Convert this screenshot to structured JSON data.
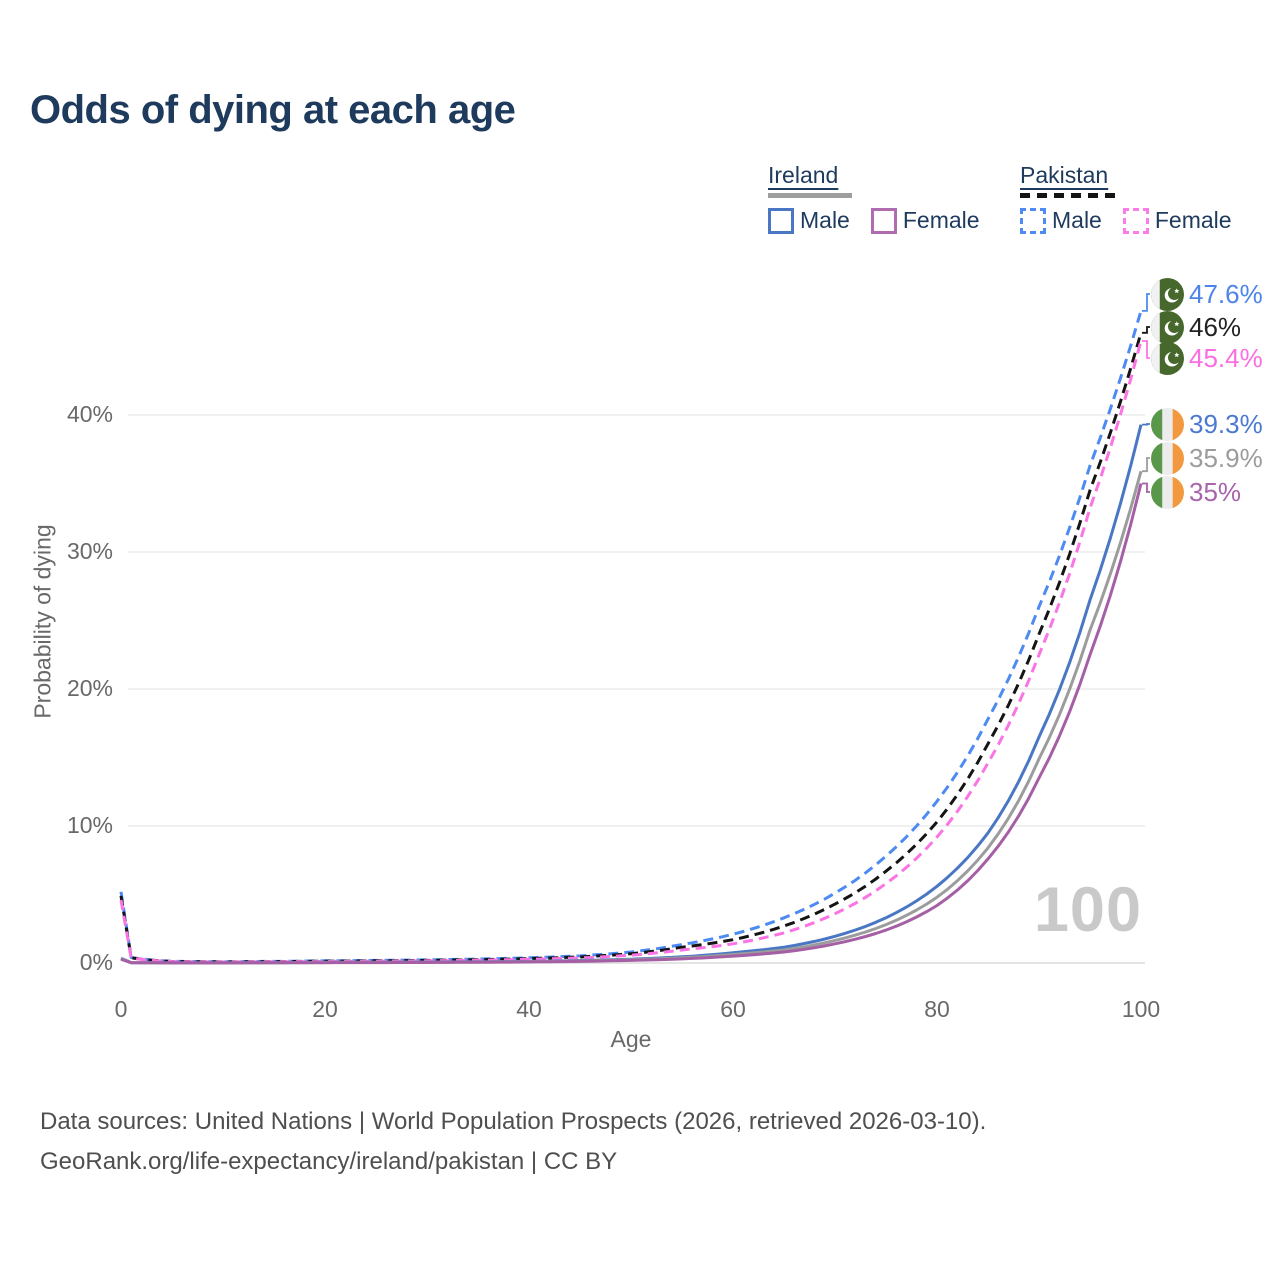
{
  "title": "Odds of dying at each age",
  "watermark": "100",
  "footer": {
    "line1": "Data sources: United Nations | World Population Prospects (2026, retrieved 2026-03-10).",
    "line2": "GeoRank.org/life-expectancy/ireland/pakistan | CC BY"
  },
  "legend": {
    "groups": [
      {
        "id": "ireland",
        "label": "Ireland",
        "line_style": "solid",
        "line_color": "#9e9e9e",
        "items": [
          {
            "id": "ie_male",
            "label": "Male",
            "color": "#4a77c4",
            "style": "solid"
          },
          {
            "id": "ie_female",
            "label": "Female",
            "color": "#b06cb0",
            "style": "solid"
          }
        ]
      },
      {
        "id": "pakistan",
        "label": "Pakistan",
        "line_style": "dashed",
        "line_color": "#141414",
        "items": [
          {
            "id": "pk_male",
            "label": "Male",
            "color": "#4d8af2",
            "style": "dashed"
          },
          {
            "id": "pk_female",
            "label": "Female",
            "color": "#fb7ce8",
            "style": "dashed"
          }
        ]
      }
    ]
  },
  "chart_data": {
    "type": "line",
    "title": "Odds of dying at each age",
    "xlabel": "Age",
    "ylabel": "Probability of dying",
    "xlim": [
      0,
      100
    ],
    "ylim": [
      0,
      48
    ],
    "x_ticks": [
      0,
      20,
      40,
      60,
      80,
      100
    ],
    "y_ticks": [
      "0%",
      "10%",
      "20%",
      "30%",
      "40%"
    ],
    "grid": "horizontal",
    "legend_position": "top-right",
    "x": [
      0,
      1,
      5,
      10,
      15,
      20,
      25,
      30,
      35,
      40,
      45,
      50,
      55,
      60,
      65,
      70,
      75,
      80,
      85,
      90,
      95,
      100
    ],
    "series": [
      {
        "id": "pk_male",
        "name": "Pakistan Male",
        "flag": "pk",
        "color": "#4d8af2",
        "label_color": "#4d84ea",
        "dash": true,
        "end_label": "47.6%",
        "values": [
          5.2,
          0.4,
          0.12,
          0.09,
          0.12,
          0.16,
          0.19,
          0.23,
          0.29,
          0.38,
          0.52,
          0.8,
          1.35,
          2.1,
          3.3,
          5.1,
          7.8,
          11.8,
          17.8,
          26.0,
          36.3,
          47.6
        ]
      },
      {
        "id": "pk_all",
        "name": "Pakistan Both sexes",
        "flag": "pk",
        "color": "#141414",
        "label_color": "#222222",
        "dash": true,
        "end_label": "46%",
        "values": [
          4.9,
          0.38,
          0.11,
          0.08,
          0.1,
          0.13,
          0.16,
          0.19,
          0.24,
          0.32,
          0.44,
          0.68,
          1.15,
          1.7,
          2.7,
          4.3,
          6.7,
          10.3,
          16.0,
          24.0,
          34.5,
          46.0
        ]
      },
      {
        "id": "pk_female",
        "name": "Pakistan Female",
        "flag": "pk",
        "color": "#fb74e4",
        "label_color": "#fb6ee2",
        "dash": true,
        "end_label": "45.4%",
        "values": [
          4.6,
          0.36,
          0.1,
          0.07,
          0.09,
          0.11,
          0.13,
          0.16,
          0.2,
          0.27,
          0.37,
          0.57,
          0.95,
          1.4,
          2.2,
          3.6,
          5.8,
          9.2,
          14.6,
          22.5,
          33.2,
          45.4
        ]
      },
      {
        "id": "ie_male",
        "name": "Ireland Male",
        "flag": "ie",
        "color": "#4a77c4",
        "label_color": "#4a79cf",
        "dash": false,
        "end_label": "39.3%",
        "values": [
          0.35,
          0.03,
          0.008,
          0.008,
          0.025,
          0.05,
          0.06,
          0.07,
          0.09,
          0.12,
          0.18,
          0.28,
          0.45,
          0.75,
          1.15,
          1.95,
          3.3,
          5.6,
          9.5,
          16.5,
          26.5,
          39.3
        ]
      },
      {
        "id": "ie_all",
        "name": "Ireland Both sexes",
        "flag": "ie",
        "color": "#9c9c9c",
        "label_color": "#9c9c9c",
        "dash": false,
        "end_label": "35.9%",
        "values": [
          0.32,
          0.025,
          0.008,
          0.008,
          0.02,
          0.04,
          0.045,
          0.055,
          0.07,
          0.1,
          0.15,
          0.24,
          0.38,
          0.62,
          0.95,
          1.65,
          2.8,
          4.8,
          8.4,
          14.9,
          24.3,
          35.9
        ]
      },
      {
        "id": "ie_female",
        "name": "Ireland Female",
        "flag": "ie",
        "color": "#a55fa5",
        "label_color": "#a763ab",
        "dash": false,
        "end_label": "35%",
        "values": [
          0.28,
          0.02,
          0.007,
          0.007,
          0.015,
          0.025,
          0.03,
          0.04,
          0.055,
          0.08,
          0.12,
          0.19,
          0.3,
          0.5,
          0.8,
          1.4,
          2.4,
          4.2,
          7.6,
          13.5,
          22.5,
          35.0
        ]
      }
    ],
    "flag_colors": {
      "pk_green": "#47682c",
      "pk_white": "#f1f1f1",
      "ie_green": "#59984a",
      "ie_white": "#ececec",
      "ie_orange": "#f2993f"
    },
    "grid_color": "#ececec",
    "zero_line_color": "#dcdcdc"
  }
}
